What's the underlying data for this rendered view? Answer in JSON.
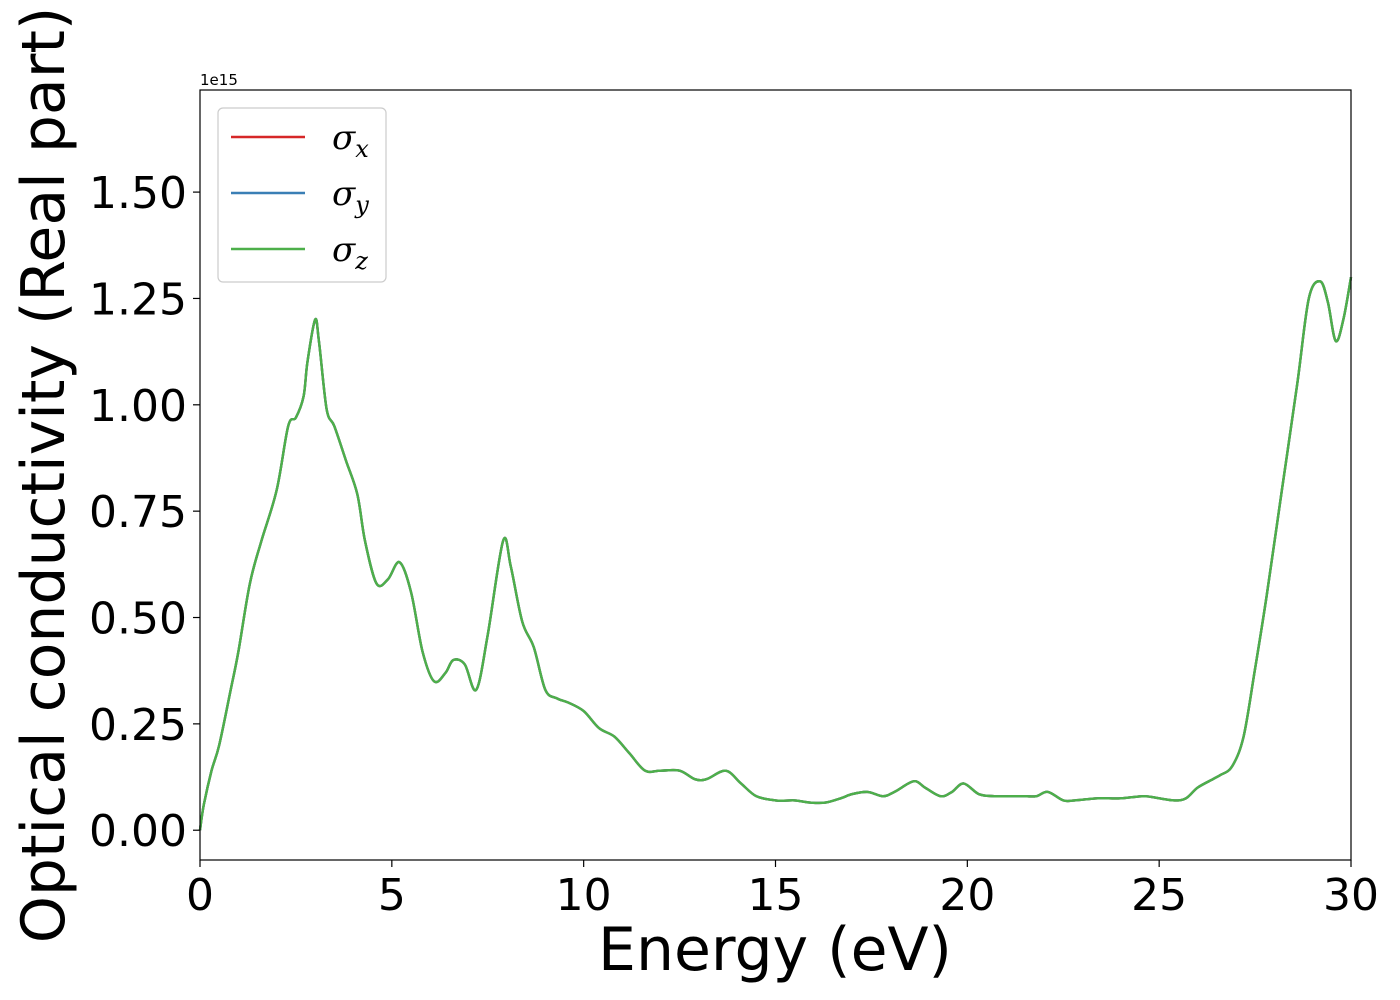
{
  "chart_data": {
    "type": "line",
    "xlabel": "Energy (eV)",
    "ylabel": "Optical conductivity (Real part)",
    "y_offset_text": "1e15",
    "y_scale_factor": 1000000000000000.0,
    "xlim": [
      0,
      30
    ],
    "ylim": [
      -0.07,
      1.74
    ],
    "x_ticks": [
      0,
      5,
      10,
      15,
      20,
      25,
      30
    ],
    "x_tick_labels": [
      "0",
      "5",
      "10",
      "15",
      "20",
      "25",
      "30"
    ],
    "y_ticks": [
      0,
      0.25,
      0.5,
      0.75,
      1.0,
      1.25,
      1.5
    ],
    "y_tick_labels": [
      "0.00",
      "0.25",
      "0.50",
      "0.75",
      "1.00",
      "1.25",
      "1.50"
    ],
    "grid": false,
    "legend_position": "top-left",
    "series": [
      {
        "name": "σ",
        "subscript": "x",
        "color": "#d62728"
      },
      {
        "name": "σ",
        "subscript": "y",
        "color": "#3a7fb5"
      },
      {
        "name": "σ",
        "subscript": "z",
        "color": "#4daf4a"
      }
    ],
    "x": [
      0,
      0.1,
      0.3,
      0.5,
      0.8,
      1.0,
      1.3,
      1.6,
      2.0,
      2.3,
      2.5,
      2.7,
      2.8,
      3.0,
      3.1,
      3.3,
      3.5,
      3.8,
      4.1,
      4.3,
      4.6,
      4.9,
      5.2,
      5.5,
      5.8,
      6.1,
      6.4,
      6.6,
      6.9,
      7.2,
      7.5,
      7.9,
      8.1,
      8.4,
      8.7,
      9.0,
      9.3,
      9.6,
      10.0,
      10.4,
      10.8,
      11.2,
      11.6,
      12.0,
      12.5,
      12.9,
      13.2,
      13.7,
      14.1,
      14.5,
      15.0,
      15.5,
      15.9,
      16.3,
      16.7,
      17.0,
      17.4,
      17.8,
      18.1,
      18.6,
      18.9,
      19.3,
      19.6,
      19.9,
      20.3,
      20.7,
      21.1,
      21.5,
      21.8,
      22.1,
      22.5,
      22.8,
      23.4,
      24.0,
      24.6,
      25.0,
      25.4,
      25.7,
      26.0,
      26.4,
      26.6,
      26.9,
      27.2,
      27.5,
      27.8,
      28.2,
      28.6,
      28.9,
      29.2,
      29.4,
      29.6,
      29.8,
      30.0
    ],
    "y": [
      0.0,
      0.06,
      0.14,
      0.2,
      0.33,
      0.42,
      0.58,
      0.68,
      0.8,
      0.95,
      0.97,
      1.02,
      1.1,
      1.2,
      1.15,
      0.99,
      0.95,
      0.87,
      0.79,
      0.68,
      0.58,
      0.59,
      0.63,
      0.56,
      0.42,
      0.35,
      0.37,
      0.4,
      0.39,
      0.33,
      0.46,
      0.68,
      0.62,
      0.49,
      0.43,
      0.33,
      0.31,
      0.3,
      0.28,
      0.24,
      0.22,
      0.18,
      0.14,
      0.14,
      0.14,
      0.12,
      0.12,
      0.14,
      0.11,
      0.08,
      0.07,
      0.07,
      0.065,
      0.065,
      0.075,
      0.085,
      0.09,
      0.08,
      0.09,
      0.115,
      0.1,
      0.08,
      0.09,
      0.11,
      0.085,
      0.08,
      0.08,
      0.08,
      0.08,
      0.09,
      0.07,
      0.07,
      0.075,
      0.075,
      0.08,
      0.075,
      0.07,
      0.075,
      0.1,
      0.12,
      0.13,
      0.15,
      0.22,
      0.38,
      0.55,
      0.8,
      1.05,
      1.25,
      1.29,
      1.24,
      1.15,
      1.2,
      1.3
    ]
  }
}
